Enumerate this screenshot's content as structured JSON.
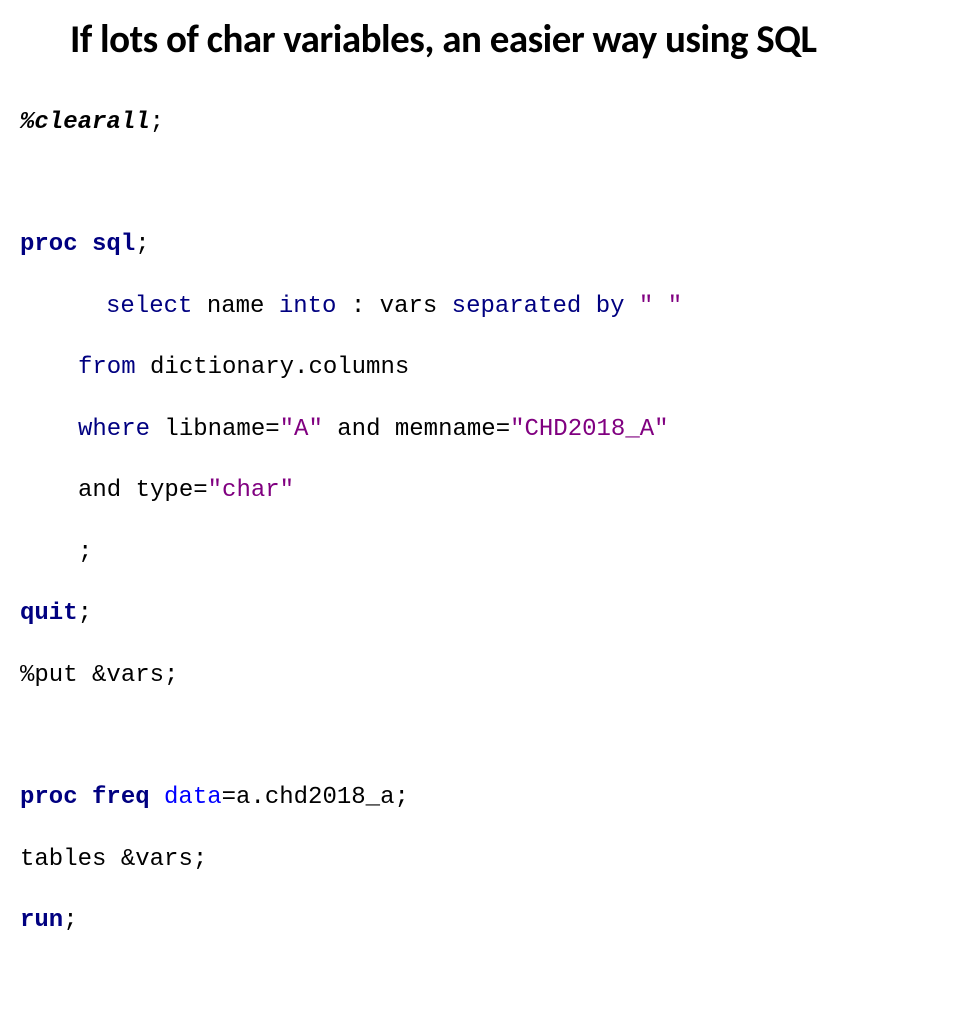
{
  "slide": {
    "title": "If lots of char variables, an easier way using SQL",
    "title_fontsize": 39,
    "title_color": "#000000",
    "background_color": "#ffffff"
  },
  "code": {
    "font_family": "Lucida Console, Courier New, monospace",
    "font_size": 24,
    "colors": {
      "keyword": "#000080",
      "option": "#0000ff",
      "string": "#800080",
      "plain": "#000000"
    },
    "tokens": {
      "clearall_pct": "%",
      "clearall": "clearall",
      "semi": ";",
      "proc": "proc",
      "sql": "sql",
      "select": "select",
      "name": " name ",
      "into": "into",
      "colon_vars": " : vars ",
      "separated": "separated",
      "by": "by",
      "space_q": " \" \"",
      "from": "from",
      "dict_cols": " dictionary.columns",
      "where": "where",
      "libname_eq": " libname=",
      "lib_A": "\"A\"",
      "and1": " and",
      "memname_eq": " memname=",
      "memname_v": "\"CHD2018_A\"",
      "and2": "and",
      "type_eq": " type=",
      "type_v": "\"char\"",
      "quit": "quit",
      "put_pct": "%put ",
      "amp_vars": "&vars;",
      "freq": "freq",
      "data_eq": "data",
      "eq": "=",
      "dataset": "a.chd2018_a;",
      "tables": "tables ",
      "run": "run"
    }
  }
}
